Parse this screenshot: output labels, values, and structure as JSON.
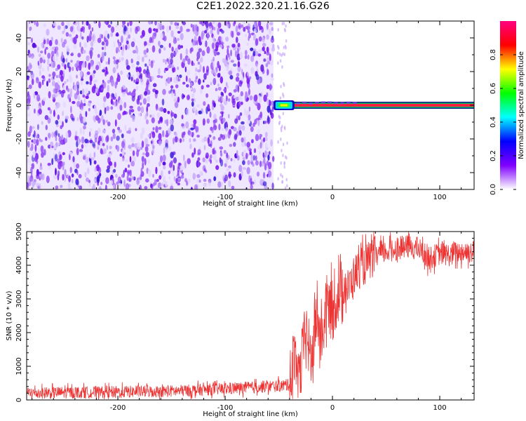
{
  "title": "C2E1.2022.320.21.16.G26",
  "chart_data": [
    {
      "type": "heatmap",
      "xlabel": "Height of straight line (km)",
      "ylabel": "Frequency (Hz)",
      "xlim": [
        -285,
        132
      ],
      "ylim": [
        -50,
        50
      ],
      "xticks": [
        -200,
        -100,
        0,
        100
      ],
      "yticks": [
        -40,
        -20,
        0,
        20,
        40
      ],
      "noise_region_x": [
        -285,
        -55
      ],
      "signal": {
        "frequency_hz": 0,
        "start_x": -55,
        "end_x": 132
      },
      "colorbar": {
        "label": "Normalized spectral amplitude",
        "range": [
          0,
          1
        ],
        "ticks": [
          0.0,
          0.2,
          0.4,
          0.6,
          0.8
        ],
        "tick_labels": [
          "0.0",
          "0.2",
          "0.4",
          "0.6",
          "0.8"
        ],
        "colormap": [
          "#ffffff",
          "#8000ff",
          "#0000ff",
          "#00ffff",
          "#00ff00",
          "#ffff00",
          "#ff0000",
          "#ff0080"
        ]
      }
    },
    {
      "type": "line",
      "xlabel": "Height of straight line (km)",
      "ylabel": "SNR (10 * v/v)",
      "xlim": [
        -285,
        132
      ],
      "ylim": [
        0,
        5000
      ],
      "xticks": [
        -200,
        -100,
        0,
        100
      ],
      "yticks": [
        0,
        1000,
        2000,
        3000,
        4000,
        5000
      ],
      "line_color": "#ee3333",
      "x": [
        -285,
        -250,
        -200,
        -150,
        -100,
        -70,
        -50,
        -40,
        -35,
        -30,
        -25,
        -20,
        -15,
        -10,
        -5,
        0,
        5,
        10,
        15,
        20,
        25,
        30,
        40,
        50,
        60,
        70,
        80,
        90,
        100,
        110,
        120,
        132
      ],
      "values": [
        200,
        220,
        240,
        260,
        330,
        380,
        420,
        450,
        1500,
        700,
        2200,
        1100,
        2500,
        1800,
        2900,
        2600,
        3100,
        3400,
        3300,
        3700,
        3900,
        4000,
        4300,
        4400,
        4500,
        4550,
        4500,
        4200,
        4350,
        4300,
        4400,
        4400
      ]
    }
  ]
}
